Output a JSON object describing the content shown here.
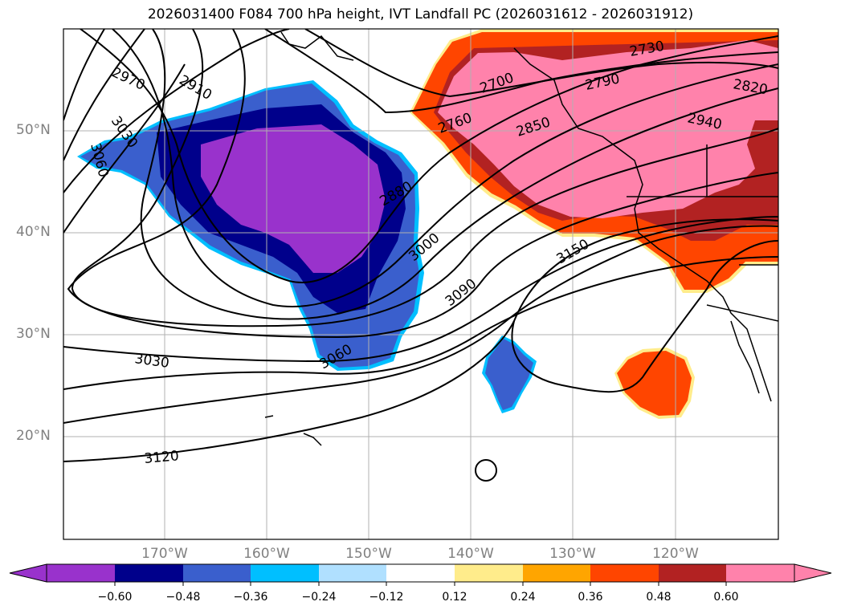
{
  "title": "2026031400 F084 700 hPa height, IVT Landfall PC (2026031612 - 2026031912)",
  "colors": {
    "neg_060": "#9932cc",
    "neg_048": "#00008b",
    "neg_036": "#3a5fcd",
    "neg_024": "#00bfff",
    "neg_012": "#b0e0ff",
    "neutral": "#ffffff",
    "pos_012": "#ffec8b",
    "pos_024": "#ffa500",
    "pos_036": "#ff4500",
    "pos_048": "#b22222",
    "pos_060": "#ff82ab",
    "contour": "#000000",
    "grid": "#b0b0b0"
  },
  "axes": {
    "lat_labels": [
      "50°N",
      "40°N",
      "30°N",
      "20°N"
    ],
    "lon_labels": [
      "170°W",
      "160°W",
      "150°W",
      "140°W",
      "130°W",
      "120°W"
    ]
  },
  "contour_labels": [
    "2970",
    "2910",
    "3030",
    "3060",
    "2880",
    "3000",
    "3090",
    "3150",
    "3060",
    "3030",
    "3120",
    "2700",
    "2760",
    "2850",
    "2730",
    "2790",
    "2820",
    "2940"
  ],
  "colorbar": {
    "tick_labels": [
      "−0.60",
      "−0.48",
      "−0.36",
      "−0.24",
      "−0.12",
      "0.12",
      "0.24",
      "0.36",
      "0.48",
      "0.60"
    ]
  }
}
